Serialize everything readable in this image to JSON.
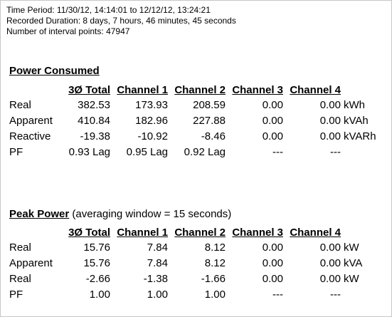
{
  "header": {
    "time_period": "Time Period: 11/30/12, 14:14:01 to 12/12/12, 13:24:21",
    "recorded_duration": "Recorded Duration: 8 days, 7 hours, 46 minutes, 45 seconds",
    "interval_points": "Number of interval points: 47947"
  },
  "power_consumed": {
    "title": "Power Consumed",
    "columns": [
      "3Ø Total",
      "Channel 1",
      "Channel 2",
      "Channel 3",
      "Channel 4"
    ],
    "rows": [
      {
        "label": "Real",
        "values": [
          "382.53",
          "173.93",
          "208.59",
          "0.00",
          "0.00"
        ],
        "unit": "kWh"
      },
      {
        "label": "Apparent",
        "values": [
          "410.84",
          "182.96",
          "227.88",
          "0.00",
          "0.00"
        ],
        "unit": "kVAh"
      },
      {
        "label": "Reactive",
        "values": [
          "-19.38",
          "-10.92",
          "-8.46",
          "0.00",
          "0.00"
        ],
        "unit": "kVARh"
      },
      {
        "label": "PF",
        "values": [
          "0.93 Lag",
          "0.95 Lag",
          "0.92 Lag",
          "---",
          "---"
        ],
        "unit": ""
      }
    ]
  },
  "peak_power": {
    "title": "Peak Power",
    "subtitle": " (averaging window = 15 seconds)",
    "columns": [
      "3Ø Total",
      "Channel 1",
      "Channel 2",
      "Channel 3",
      "Channel 4"
    ],
    "rows": [
      {
        "label": "Real",
        "values": [
          "15.76",
          "7.84",
          "8.12",
          "0.00",
          "0.00"
        ],
        "unit": "kW"
      },
      {
        "label": "Apparent",
        "values": [
          "15.76",
          "7.84",
          "8.12",
          "0.00",
          "0.00"
        ],
        "unit": "kVA"
      },
      {
        "label": "Real",
        "values": [
          "-2.66",
          "-1.38",
          "-1.66",
          "0.00",
          "0.00"
        ],
        "unit": "kW"
      },
      {
        "label": "PF",
        "values": [
          "1.00",
          "1.00",
          "1.00",
          "---",
          "---"
        ],
        "unit": ""
      }
    ]
  }
}
